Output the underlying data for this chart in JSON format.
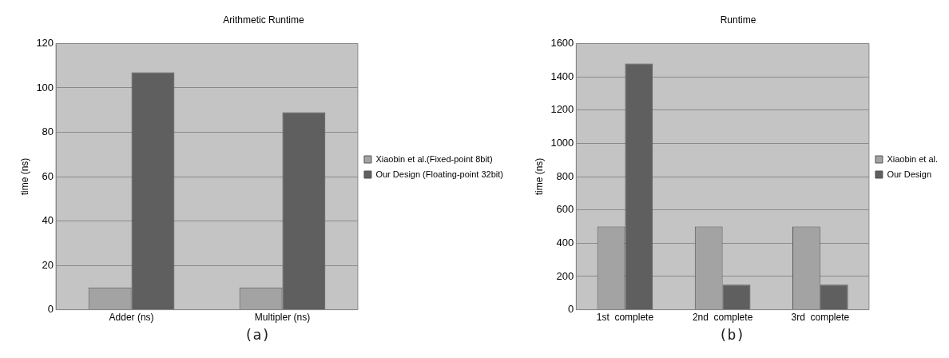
{
  "chart_data": [
    {
      "type": "bar",
      "title": "Arithmetic Runtime",
      "ylabel": "time (ns)",
      "categories": [
        "Adder (ns)",
        "Multipler (ns)"
      ],
      "series": [
        {
          "name": "Xiaobin et al.(Fixed-point 8bit)",
          "color": "#a3a3a3",
          "values": [
            10,
            10
          ]
        },
        {
          "name": "Our Design (Floating-point 32bit)",
          "color": "#5f5f5f",
          "values": [
            107,
            89
          ]
        }
      ],
      "ylim": [
        0,
        120
      ],
      "yticks": [
        0,
        20,
        40,
        60,
        80,
        100,
        120
      ],
      "grid": "y",
      "legend": "right",
      "annotations": [
        "(a)"
      ]
    },
    {
      "type": "bar",
      "title": "Runtime",
      "ylabel": "time (ns)",
      "categories": [
        "1st  complete",
        "2nd  complete",
        "3rd  complete"
      ],
      "series": [
        {
          "name": "Xiaobin et al.",
          "color": "#a3a3a3",
          "values": [
            500,
            500,
            500
          ]
        },
        {
          "name": "Our Design",
          "color": "#5f5f5f",
          "values": [
            1480,
            150,
            150
          ]
        }
      ],
      "ylim": [
        0,
        1600
      ],
      "yticks": [
        0,
        200,
        400,
        600,
        800,
        1000,
        1200,
        1400,
        1600
      ],
      "grid": "y",
      "legend": "right",
      "annotations": [
        "(b)"
      ]
    }
  ]
}
